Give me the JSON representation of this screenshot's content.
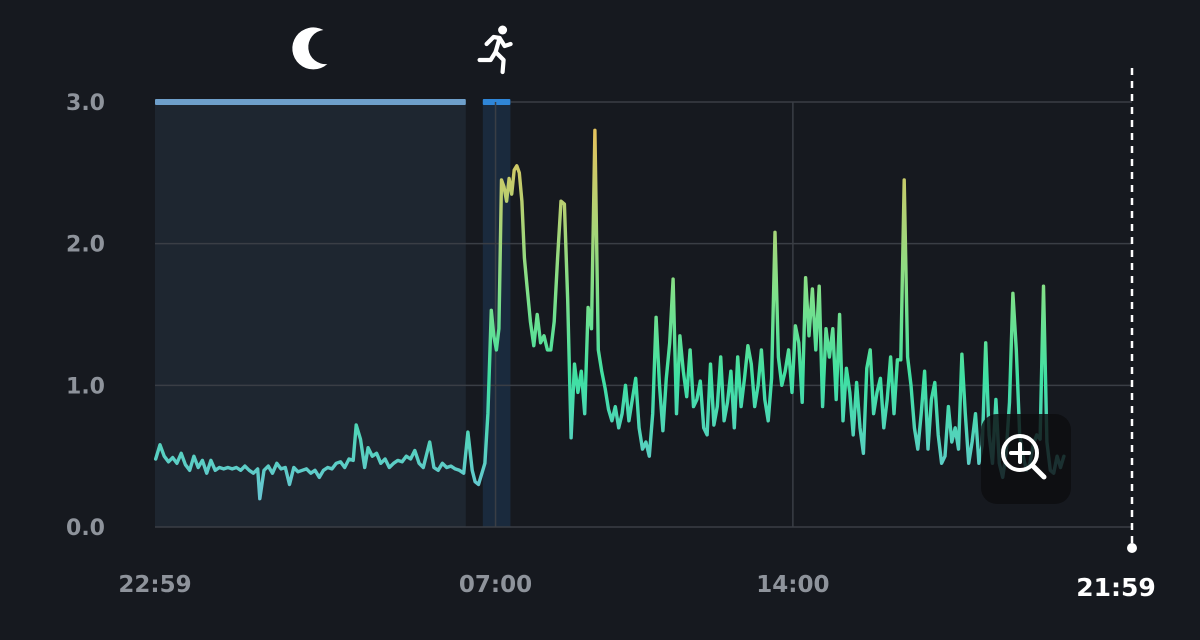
{
  "colors": {
    "background": "#16191f",
    "grid": "#3a3e45",
    "sleep_band": "#6e9fca",
    "activity_band": "#2f86d8",
    "line_low": "#6ac4d6",
    "line_mid": "#3fe0a3",
    "line_high": "#e2c35e"
  },
  "icons": {
    "sleep": "moon-icon",
    "activity": "runner-icon",
    "zoom": "zoom-in-icon"
  },
  "chart_data": {
    "type": "line",
    "title": "",
    "xlabel": "",
    "ylabel": "",
    "ylim": [
      0,
      3
    ],
    "yticks": [
      {
        "value": 0,
        "label": "0.0"
      },
      {
        "value": 1,
        "label": "1.0"
      },
      {
        "value": 2,
        "label": "2.0"
      },
      {
        "value": 3,
        "label": "3.0"
      }
    ],
    "xrange_hours": [
      -1.0167,
      21.9833
    ],
    "xticks": [
      {
        "hour": -1.0167,
        "label": "22:59"
      },
      {
        "hour": 7.0,
        "label": "07:00"
      },
      {
        "hour": 14.0,
        "label": "14:00"
      }
    ],
    "current_time": {
      "hour": 21.9833,
      "label": "21:59"
    },
    "grid": true,
    "bands": [
      {
        "name": "sleep",
        "start_hour": -1.0167,
        "end_hour": 6.3,
        "icon": "moon-icon"
      },
      {
        "name": "activity",
        "start_hour": 6.7,
        "end_hour": 7.35,
        "icon": "runner-icon"
      }
    ],
    "series": [
      {
        "points": [
          [
            -1.0,
            0.48
          ],
          [
            -0.9,
            0.58
          ],
          [
            -0.8,
            0.5
          ],
          [
            -0.7,
            0.46
          ],
          [
            -0.6,
            0.49
          ],
          [
            -0.5,
            0.45
          ],
          [
            -0.4,
            0.52
          ],
          [
            -0.3,
            0.44
          ],
          [
            -0.2,
            0.4
          ],
          [
            -0.1,
            0.5
          ],
          [
            0.0,
            0.42
          ],
          [
            0.1,
            0.47
          ],
          [
            0.2,
            0.38
          ],
          [
            0.3,
            0.47
          ],
          [
            0.4,
            0.4
          ],
          [
            0.5,
            0.42
          ],
          [
            0.6,
            0.41
          ],
          [
            0.7,
            0.42
          ],
          [
            0.8,
            0.41
          ],
          [
            0.9,
            0.42
          ],
          [
            1.0,
            0.4
          ],
          [
            1.1,
            0.43
          ],
          [
            1.2,
            0.4
          ],
          [
            1.3,
            0.38
          ],
          [
            1.4,
            0.41
          ],
          [
            1.45,
            0.2
          ],
          [
            1.55,
            0.4
          ],
          [
            1.65,
            0.43
          ],
          [
            1.75,
            0.38
          ],
          [
            1.85,
            0.45
          ],
          [
            1.95,
            0.41
          ],
          [
            2.05,
            0.42
          ],
          [
            2.15,
            0.3
          ],
          [
            2.25,
            0.42
          ],
          [
            2.35,
            0.39
          ],
          [
            2.45,
            0.4
          ],
          [
            2.55,
            0.41
          ],
          [
            2.65,
            0.38
          ],
          [
            2.75,
            0.4
          ],
          [
            2.85,
            0.35
          ],
          [
            2.95,
            0.4
          ],
          [
            3.05,
            0.42
          ],
          [
            3.15,
            0.41
          ],
          [
            3.25,
            0.45
          ],
          [
            3.35,
            0.46
          ],
          [
            3.45,
            0.42
          ],
          [
            3.55,
            0.48
          ],
          [
            3.65,
            0.47
          ],
          [
            3.72,
            0.72
          ],
          [
            3.82,
            0.62
          ],
          [
            3.92,
            0.42
          ],
          [
            4.0,
            0.56
          ],
          [
            4.1,
            0.5
          ],
          [
            4.2,
            0.52
          ],
          [
            4.3,
            0.45
          ],
          [
            4.4,
            0.48
          ],
          [
            4.5,
            0.42
          ],
          [
            4.6,
            0.45
          ],
          [
            4.7,
            0.47
          ],
          [
            4.8,
            0.46
          ],
          [
            4.9,
            0.5
          ],
          [
            5.0,
            0.48
          ],
          [
            5.1,
            0.54
          ],
          [
            5.2,
            0.45
          ],
          [
            5.3,
            0.42
          ],
          [
            5.45,
            0.6
          ],
          [
            5.55,
            0.42
          ],
          [
            5.65,
            0.4
          ],
          [
            5.75,
            0.45
          ],
          [
            5.85,
            0.42
          ],
          [
            5.95,
            0.43
          ],
          [
            6.05,
            0.41
          ],
          [
            6.15,
            0.4
          ],
          [
            6.25,
            0.38
          ],
          [
            6.35,
            0.67
          ],
          [
            6.45,
            0.4
          ],
          [
            6.52,
            0.32
          ],
          [
            6.6,
            0.3
          ],
          [
            6.68,
            0.38
          ],
          [
            6.75,
            0.45
          ],
          [
            6.82,
            0.8
          ],
          [
            6.9,
            1.53
          ],
          [
            6.96,
            1.35
          ],
          [
            7.02,
            1.25
          ],
          [
            7.08,
            1.4
          ],
          [
            7.14,
            2.45
          ],
          [
            7.2,
            2.4
          ],
          [
            7.26,
            2.3
          ],
          [
            7.32,
            2.46
          ],
          [
            7.38,
            2.35
          ],
          [
            7.44,
            2.52
          ],
          [
            7.5,
            2.55
          ],
          [
            7.56,
            2.5
          ],
          [
            7.62,
            2.3
          ],
          [
            7.68,
            1.9
          ],
          [
            7.74,
            1.7
          ],
          [
            7.82,
            1.45
          ],
          [
            7.9,
            1.28
          ],
          [
            7.98,
            1.5
          ],
          [
            8.06,
            1.3
          ],
          [
            8.14,
            1.35
          ],
          [
            8.22,
            1.25
          ],
          [
            8.3,
            1.25
          ],
          [
            8.38,
            1.45
          ],
          [
            8.46,
            1.9
          ],
          [
            8.54,
            2.3
          ],
          [
            8.62,
            2.28
          ],
          [
            8.7,
            1.6
          ],
          [
            8.78,
            0.63
          ],
          [
            8.86,
            1.15
          ],
          [
            8.94,
            0.95
          ],
          [
            9.02,
            1.1
          ],
          [
            9.1,
            0.8
          ],
          [
            9.18,
            1.55
          ],
          [
            9.26,
            1.4
          ],
          [
            9.34,
            2.8
          ],
          [
            9.42,
            1.25
          ],
          [
            9.5,
            1.1
          ],
          [
            9.58,
            0.98
          ],
          [
            9.66,
            0.83
          ],
          [
            9.74,
            0.75
          ],
          [
            9.82,
            0.85
          ],
          [
            9.9,
            0.7
          ],
          [
            9.98,
            0.8
          ],
          [
            10.06,
            1.0
          ],
          [
            10.14,
            0.75
          ],
          [
            10.22,
            0.9
          ],
          [
            10.3,
            1.05
          ],
          [
            10.38,
            0.7
          ],
          [
            10.46,
            0.55
          ],
          [
            10.54,
            0.6
          ],
          [
            10.62,
            0.5
          ],
          [
            10.7,
            0.8
          ],
          [
            10.78,
            1.48
          ],
          [
            10.86,
            1.0
          ],
          [
            10.94,
            0.68
          ],
          [
            11.02,
            1.05
          ],
          [
            11.1,
            1.3
          ],
          [
            11.18,
            1.75
          ],
          [
            11.26,
            0.8
          ],
          [
            11.34,
            1.35
          ],
          [
            11.42,
            1.1
          ],
          [
            11.5,
            0.92
          ],
          [
            11.58,
            1.25
          ],
          [
            11.66,
            0.85
          ],
          [
            11.74,
            0.9
          ],
          [
            11.82,
            1.03
          ],
          [
            11.9,
            0.7
          ],
          [
            11.98,
            0.65
          ],
          [
            12.06,
            1.15
          ],
          [
            12.14,
            0.72
          ],
          [
            12.22,
            0.85
          ],
          [
            12.3,
            1.2
          ],
          [
            12.38,
            0.75
          ],
          [
            12.46,
            0.88
          ],
          [
            12.54,
            1.1
          ],
          [
            12.62,
            0.7
          ],
          [
            12.7,
            1.2
          ],
          [
            12.78,
            0.85
          ],
          [
            12.86,
            1.05
          ],
          [
            12.94,
            1.28
          ],
          [
            13.02,
            1.15
          ],
          [
            13.1,
            0.85
          ],
          [
            13.18,
            1.0
          ],
          [
            13.26,
            1.25
          ],
          [
            13.34,
            0.9
          ],
          [
            13.42,
            0.75
          ],
          [
            13.5,
            1.05
          ],
          [
            13.58,
            2.08
          ],
          [
            13.66,
            1.2
          ],
          [
            13.74,
            1.0
          ],
          [
            13.82,
            1.1
          ],
          [
            13.9,
            1.25
          ],
          [
            13.98,
            0.95
          ],
          [
            14.06,
            1.42
          ],
          [
            14.14,
            1.3
          ],
          [
            14.22,
            0.88
          ],
          [
            14.3,
            1.76
          ],
          [
            14.38,
            1.35
          ],
          [
            14.46,
            1.68
          ],
          [
            14.54,
            1.25
          ],
          [
            14.62,
            1.7
          ],
          [
            14.7,
            0.85
          ],
          [
            14.78,
            1.4
          ],
          [
            14.86,
            1.2
          ],
          [
            14.94,
            1.4
          ],
          [
            15.02,
            0.9
          ],
          [
            15.1,
            1.5
          ],
          [
            15.18,
            0.75
          ],
          [
            15.26,
            1.12
          ],
          [
            15.34,
            0.95
          ],
          [
            15.42,
            0.65
          ],
          [
            15.5,
            1.02
          ],
          [
            15.58,
            0.7
          ],
          [
            15.66,
            0.52
          ],
          [
            15.74,
            1.12
          ],
          [
            15.82,
            1.25
          ],
          [
            15.9,
            0.8
          ],
          [
            15.98,
            0.95
          ],
          [
            16.06,
            1.05
          ],
          [
            16.14,
            0.7
          ],
          [
            16.22,
            0.9
          ],
          [
            16.3,
            1.2
          ],
          [
            16.38,
            0.8
          ],
          [
            16.46,
            1.18
          ],
          [
            16.54,
            1.18
          ],
          [
            16.62,
            2.45
          ],
          [
            16.7,
            1.2
          ],
          [
            16.78,
            1.0
          ],
          [
            16.86,
            0.7
          ],
          [
            16.94,
            0.55
          ],
          [
            17.02,
            0.8
          ],
          [
            17.1,
            1.1
          ],
          [
            17.18,
            0.55
          ],
          [
            17.26,
            0.9
          ],
          [
            17.34,
            1.02
          ],
          [
            17.42,
            0.65
          ],
          [
            17.5,
            0.45
          ],
          [
            17.58,
            0.5
          ],
          [
            17.66,
            0.85
          ],
          [
            17.74,
            0.6
          ],
          [
            17.82,
            0.7
          ],
          [
            17.9,
            0.55
          ],
          [
            17.98,
            1.22
          ],
          [
            18.06,
            0.8
          ],
          [
            18.14,
            0.45
          ],
          [
            18.22,
            0.6
          ],
          [
            18.3,
            0.8
          ],
          [
            18.38,
            0.45
          ],
          [
            18.46,
            0.58
          ],
          [
            18.54,
            1.3
          ],
          [
            18.62,
            0.65
          ],
          [
            18.7,
            0.45
          ],
          [
            18.78,
            0.9
          ],
          [
            18.86,
            0.45
          ],
          [
            18.94,
            0.35
          ],
          [
            19.02,
            0.52
          ],
          [
            19.1,
            0.88
          ],
          [
            19.18,
            1.65
          ],
          [
            19.26,
            1.25
          ],
          [
            19.34,
            0.65
          ],
          [
            19.42,
            0.5
          ],
          [
            19.5,
            0.4
          ],
          [
            19.58,
            0.45
          ],
          [
            19.66,
            0.58
          ],
          [
            19.74,
            0.65
          ],
          [
            19.82,
            0.62
          ],
          [
            19.9,
            1.7
          ],
          [
            19.98,
            0.6
          ],
          [
            20.06,
            0.4
          ],
          [
            20.14,
            0.38
          ],
          [
            20.22,
            0.5
          ],
          [
            20.3,
            0.42
          ],
          [
            20.38,
            0.5
          ]
        ]
      }
    ]
  }
}
